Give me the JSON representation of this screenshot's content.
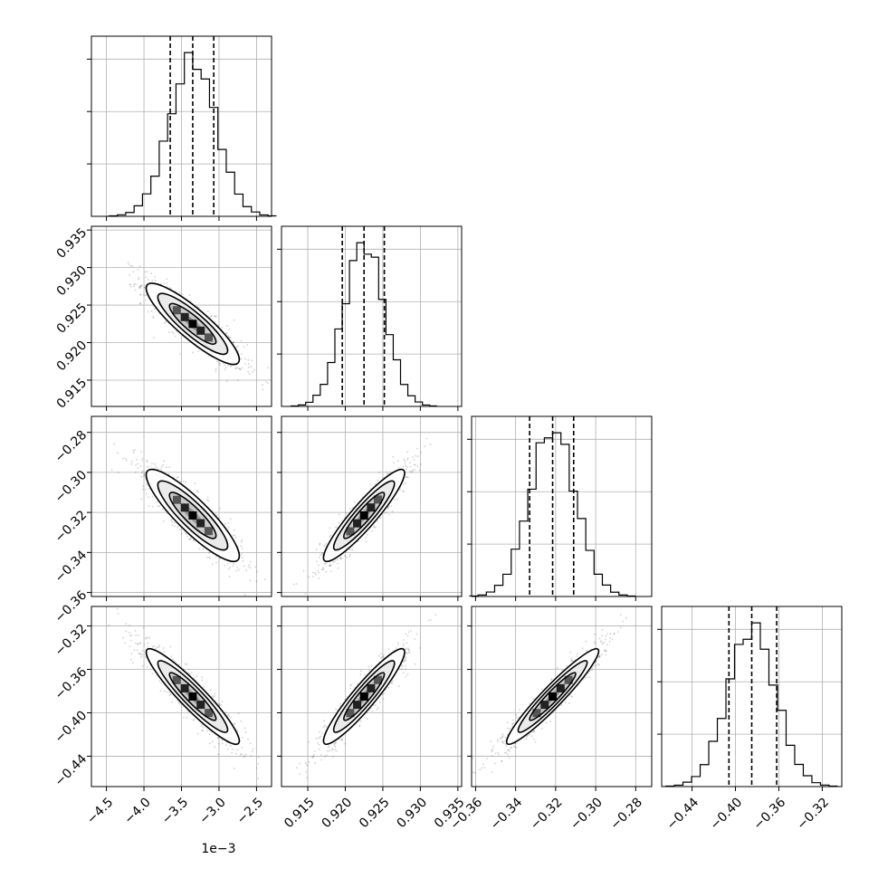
{
  "chart_data": {
    "type": "corner",
    "n_params": 4,
    "params": [
      {
        "range": [
          -4.7,
          -2.3
        ],
        "ticks": [
          -4.5,
          -4.0,
          -3.5,
          -3.0,
          -2.5
        ],
        "tick_labels": [
          "−4.5",
          "−4.0",
          "−3.5",
          "−3.0",
          "−2.5"
        ],
        "offset_text": "1e−3",
        "mean": -3.35,
        "sigma": 0.31,
        "quantiles": [
          -3.65,
          -3.35,
          -3.07
        ]
      },
      {
        "range": [
          0.9115,
          0.9355
        ],
        "ticks": [
          0.915,
          0.92,
          0.925,
          0.93,
          0.935
        ],
        "tick_labels": [
          "0.915",
          "0.920",
          "0.925",
          "0.930",
          "0.935"
        ],
        "offset_text": "",
        "mean": 0.9225,
        "sigma": 0.0027,
        "quantiles": [
          0.9196,
          0.9225,
          0.9252
        ]
      },
      {
        "range": [
          -0.362,
          -0.272
        ],
        "ticks": [
          -0.36,
          -0.34,
          -0.32,
          -0.3,
          -0.28
        ],
        "tick_labels": [
          "−0.36",
          "−0.34",
          "−0.32",
          "−0.30",
          "−0.28"
        ],
        "offset_text": "",
        "mean": -0.3215,
        "sigma": 0.0115,
        "quantiles": [
          -0.333,
          -0.3215,
          -0.311
        ]
      },
      {
        "range": [
          -0.468,
          -0.302
        ],
        "ticks": [
          -0.44,
          -0.4,
          -0.36,
          -0.32
        ],
        "tick_labels": [
          "−0.44",
          "−0.40",
          "−0.36",
          "−0.32"
        ],
        "offset_text": "",
        "mean": -0.385,
        "sigma": 0.022,
        "quantiles": [
          -0.406,
          -0.385,
          -0.362
        ]
      }
    ],
    "correlations": [
      [
        1.0,
        -0.88,
        -0.88,
        -0.93
      ],
      [
        -0.88,
        1.0,
        0.92,
        0.93
      ],
      [
        -0.88,
        0.92,
        1.0,
        0.95
      ],
      [
        -0.93,
        0.93,
        0.95,
        1.0
      ]
    ],
    "hist_bins": 20,
    "contour_levels_sigma": [
      0.5,
      1.0,
      1.5,
      2.0
    ],
    "grid": true,
    "colors": {
      "line": "#000000",
      "grid": "#b0b0b0",
      "points": "#000000"
    }
  }
}
